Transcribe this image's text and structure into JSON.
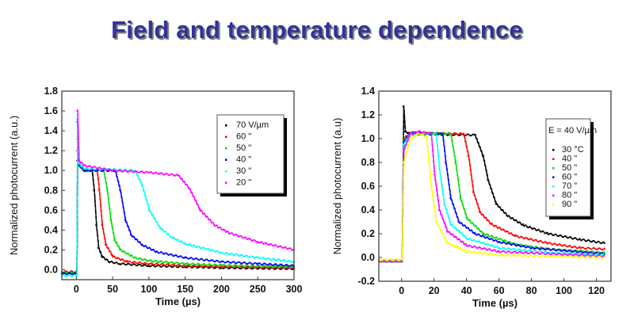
{
  "slide": {
    "title": "Field and temperature dependence"
  },
  "chart_data": [
    {
      "type": "scatter",
      "title": "",
      "xlabel": "Time (µs)",
      "ylabel": "Normalized photocurrent (a.u.)",
      "xlim": [
        -20,
        300
      ],
      "ylim": [
        -0.1,
        1.8
      ],
      "xticks": [
        0,
        50,
        100,
        150,
        200,
        250,
        300
      ],
      "yticks": [
        0.0,
        0.2,
        0.4,
        0.6,
        0.8,
        1.0,
        1.2,
        1.4,
        1.6,
        1.8
      ],
      "grid": false,
      "legend_placement": "top-right",
      "series": [
        {
          "name": "70 V/µm",
          "color": "#000000",
          "points": [
            [
              -20,
              -0.03
            ],
            [
              0,
              -0.03
            ],
            [
              1,
              1.1
            ],
            [
              3,
              1.05
            ],
            [
              10,
              1.0
            ],
            [
              21,
              1.0
            ],
            [
              24,
              0.8
            ],
            [
              27,
              0.45
            ],
            [
              30,
              0.22
            ],
            [
              35,
              0.13
            ],
            [
              45,
              0.08
            ],
            [
              60,
              0.06
            ],
            [
              100,
              0.04
            ],
            [
              150,
              0.03
            ],
            [
              200,
              0.02
            ],
            [
              300,
              0.01
            ]
          ]
        },
        {
          "name": "60 \"",
          "color": "#ff0000",
          "points": [
            [
              -20,
              -0.02
            ],
            [
              0,
              -0.02
            ],
            [
              1,
              1.2
            ],
            [
              3,
              1.05
            ],
            [
              10,
              1.0
            ],
            [
              28,
              1.0
            ],
            [
              31,
              0.8
            ],
            [
              35,
              0.45
            ],
            [
              40,
              0.25
            ],
            [
              50,
              0.13
            ],
            [
              70,
              0.08
            ],
            [
              100,
              0.06
            ],
            [
              150,
              0.04
            ],
            [
              200,
              0.03
            ],
            [
              300,
              0.02
            ]
          ]
        },
        {
          "name": "50 \"",
          "color": "#00dd00",
          "points": [
            [
              -20,
              -0.03
            ],
            [
              0,
              -0.03
            ],
            [
              1,
              1.32
            ],
            [
              3,
              1.05
            ],
            [
              10,
              1.0
            ],
            [
              37,
              1.0
            ],
            [
              42,
              0.8
            ],
            [
              47,
              0.5
            ],
            [
              52,
              0.3
            ],
            [
              60,
              0.2
            ],
            [
              80,
              0.12
            ],
            [
              100,
              0.09
            ],
            [
              150,
              0.06
            ],
            [
              200,
              0.045
            ],
            [
              300,
              0.03
            ]
          ]
        },
        {
          "name": "40 \"",
          "color": "#0000ff",
          "points": [
            [
              -20,
              -0.04
            ],
            [
              0,
              -0.04
            ],
            [
              1,
              1.49
            ],
            [
              3,
              1.06
            ],
            [
              10,
              1.0
            ],
            [
              53,
              1.0
            ],
            [
              60,
              0.8
            ],
            [
              67,
              0.5
            ],
            [
              75,
              0.35
            ],
            [
              90,
              0.25
            ],
            [
              110,
              0.18
            ],
            [
              150,
              0.12
            ],
            [
              200,
              0.08
            ],
            [
              250,
              0.06
            ],
            [
              300,
              0.04
            ]
          ]
        },
        {
          "name": "30 \"",
          "color": "#00ffff",
          "points": [
            [
              -20,
              -0.06
            ],
            [
              0,
              -0.06
            ],
            [
              1,
              1.52
            ],
            [
              3,
              1.07
            ],
            [
              10,
              1.02
            ],
            [
              80,
              1.0
            ],
            [
              90,
              0.85
            ],
            [
              100,
              0.6
            ],
            [
              115,
              0.42
            ],
            [
              130,
              0.33
            ],
            [
              150,
              0.26
            ],
            [
              200,
              0.17
            ],
            [
              250,
              0.12
            ],
            [
              300,
              0.08
            ]
          ]
        },
        {
          "name": "20 \"",
          "color": "#ff00ff",
          "points": [
            [
              1,
              1.6
            ],
            [
              3,
              1.1
            ],
            [
              10,
              1.05
            ],
            [
              50,
              1.0
            ],
            [
              100,
              0.98
            ],
            [
              140,
              0.95
            ],
            [
              155,
              0.82
            ],
            [
              170,
              0.6
            ],
            [
              190,
              0.45
            ],
            [
              210,
              0.37
            ],
            [
              250,
              0.28
            ],
            [
              300,
              0.2
            ]
          ]
        }
      ]
    },
    {
      "type": "scatter",
      "title": "",
      "xlabel": "Time (µs)",
      "ylabel": "Normalized photocurrent (a.u)",
      "xlim": [
        -14,
        129
      ],
      "ylim": [
        -0.2,
        1.4
      ],
      "xticks": [
        0,
        20,
        40,
        60,
        80,
        100,
        120
      ],
      "yticks": [
        -0.2,
        0.0,
        0.2,
        0.4,
        0.6,
        0.8,
        1.0,
        1.2,
        1.4
      ],
      "grid": false,
      "legend_placement": "top-right",
      "legend_title": "E = 40 V/µm",
      "series": [
        {
          "name": "30 °C",
          "color": "#000000",
          "points": [
            [
              -14,
              -0.03
            ],
            [
              0,
              -0.03
            ],
            [
              1,
              1.27
            ],
            [
              2,
              1.06
            ],
            [
              5,
              1.04
            ],
            [
              45,
              1.03
            ],
            [
              50,
              0.85
            ],
            [
              53,
              0.65
            ],
            [
              58,
              0.45
            ],
            [
              65,
              0.35
            ],
            [
              75,
              0.27
            ],
            [
              90,
              0.2
            ],
            [
              110,
              0.15
            ],
            [
              125,
              0.12
            ]
          ]
        },
        {
          "name": "40 \"",
          "color": "#ff0000",
          "points": [
            [
              -14,
              -0.03
            ],
            [
              0,
              -0.03
            ],
            [
              1,
              1.0
            ],
            [
              5,
              1.05
            ],
            [
              38,
              1.04
            ],
            [
              41,
              0.85
            ],
            [
              44,
              0.55
            ],
            [
              48,
              0.38
            ],
            [
              55,
              0.28
            ],
            [
              70,
              0.18
            ],
            [
              90,
              0.12
            ],
            [
              110,
              0.08
            ],
            [
              125,
              0.07
            ]
          ]
        },
        {
          "name": "50 \"",
          "color": "#00dd00",
          "points": [
            [
              -14,
              -0.03
            ],
            [
              0,
              -0.03
            ],
            [
              1,
              0.98
            ],
            [
              5,
              1.05
            ],
            [
              30,
              1.04
            ],
            [
              33,
              0.8
            ],
            [
              36,
              0.5
            ],
            [
              40,
              0.33
            ],
            [
              50,
              0.2
            ],
            [
              70,
              0.11
            ],
            [
              90,
              0.07
            ],
            [
              125,
              0.04
            ]
          ]
        },
        {
          "name": "60 \"",
          "color": "#0000ff",
          "points": [
            [
              -14,
              -0.03
            ],
            [
              0,
              -0.03
            ],
            [
              1,
              0.97
            ],
            [
              5,
              1.05
            ],
            [
              25,
              1.04
            ],
            [
              27,
              0.8
            ],
            [
              30,
              0.5
            ],
            [
              35,
              0.3
            ],
            [
              45,
              0.2
            ],
            [
              60,
              0.13
            ],
            [
              80,
              0.08
            ],
            [
              125,
              0.03
            ]
          ]
        },
        {
          "name": "70 \"",
          "color": "#00ffff",
          "points": [
            [
              -14,
              -0.03
            ],
            [
              0,
              -0.03
            ],
            [
              1,
              0.95
            ],
            [
              5,
              1.04
            ],
            [
              21,
              1.04
            ],
            [
              23,
              0.75
            ],
            [
              26,
              0.45
            ],
            [
              30,
              0.28
            ],
            [
              40,
              0.16
            ],
            [
              60,
              0.08
            ],
            [
              90,
              0.04
            ],
            [
              125,
              0.02
            ]
          ]
        },
        {
          "name": "80 \"",
          "color": "#ff00ff",
          "points": [
            [
              -14,
              -0.03
            ],
            [
              0,
              -0.03
            ],
            [
              1,
              0.9
            ],
            [
              5,
              1.04
            ],
            [
              10,
              1.06
            ],
            [
              18,
              1.04
            ],
            [
              20,
              0.7
            ],
            [
              23,
              0.4
            ],
            [
              28,
              0.22
            ],
            [
              40,
              0.1
            ],
            [
              60,
              0.05
            ],
            [
              125,
              0.01
            ]
          ]
        },
        {
          "name": "90 \"",
          "color": "#ffff00",
          "points": [
            [
              -14,
              -0.02
            ],
            [
              0,
              -0.02
            ],
            [
              1,
              0.8
            ],
            [
              5,
              1.0
            ],
            [
              10,
              1.04
            ],
            [
              15,
              1.02
            ],
            [
              18,
              0.6
            ],
            [
              21,
              0.3
            ],
            [
              28,
              0.12
            ],
            [
              40,
              0.05
            ],
            [
              60,
              0.02
            ],
            [
              125,
              0.0
            ]
          ]
        }
      ]
    }
  ]
}
